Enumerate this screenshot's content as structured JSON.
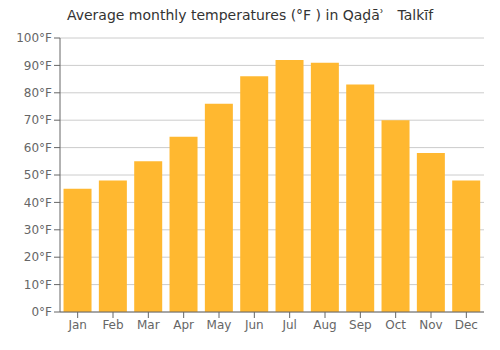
{
  "chart_data": {
    "type": "bar",
    "title": "Average monthly temperatures (°F ) in Qaḑāʾ   Talkīf",
    "categories": [
      "Jan",
      "Feb",
      "Mar",
      "Apr",
      "May",
      "Jun",
      "Jul",
      "Aug",
      "Sep",
      "Oct",
      "Nov",
      "Dec"
    ],
    "values": [
      45,
      48,
      55,
      64,
      76,
      86,
      92,
      91,
      83,
      70,
      58,
      48
    ],
    "color": "#FFB830",
    "ylim": [
      0,
      100
    ],
    "yticks": [
      {
        "value": 0,
        "label": "0°F"
      },
      {
        "value": 10,
        "label": "10°F"
      },
      {
        "value": 20,
        "label": "20°F"
      },
      {
        "value": 30,
        "label": "30°F"
      },
      {
        "value": 40,
        "label": "40°F"
      },
      {
        "value": 50,
        "label": "50°F"
      },
      {
        "value": 60,
        "label": "60°F"
      },
      {
        "value": 70,
        "label": "70°F"
      },
      {
        "value": 80,
        "label": "80°F"
      },
      {
        "value": 90,
        "label": "90°F"
      },
      {
        "value": 100,
        "label": "100°F"
      }
    ],
    "grid": true
  }
}
